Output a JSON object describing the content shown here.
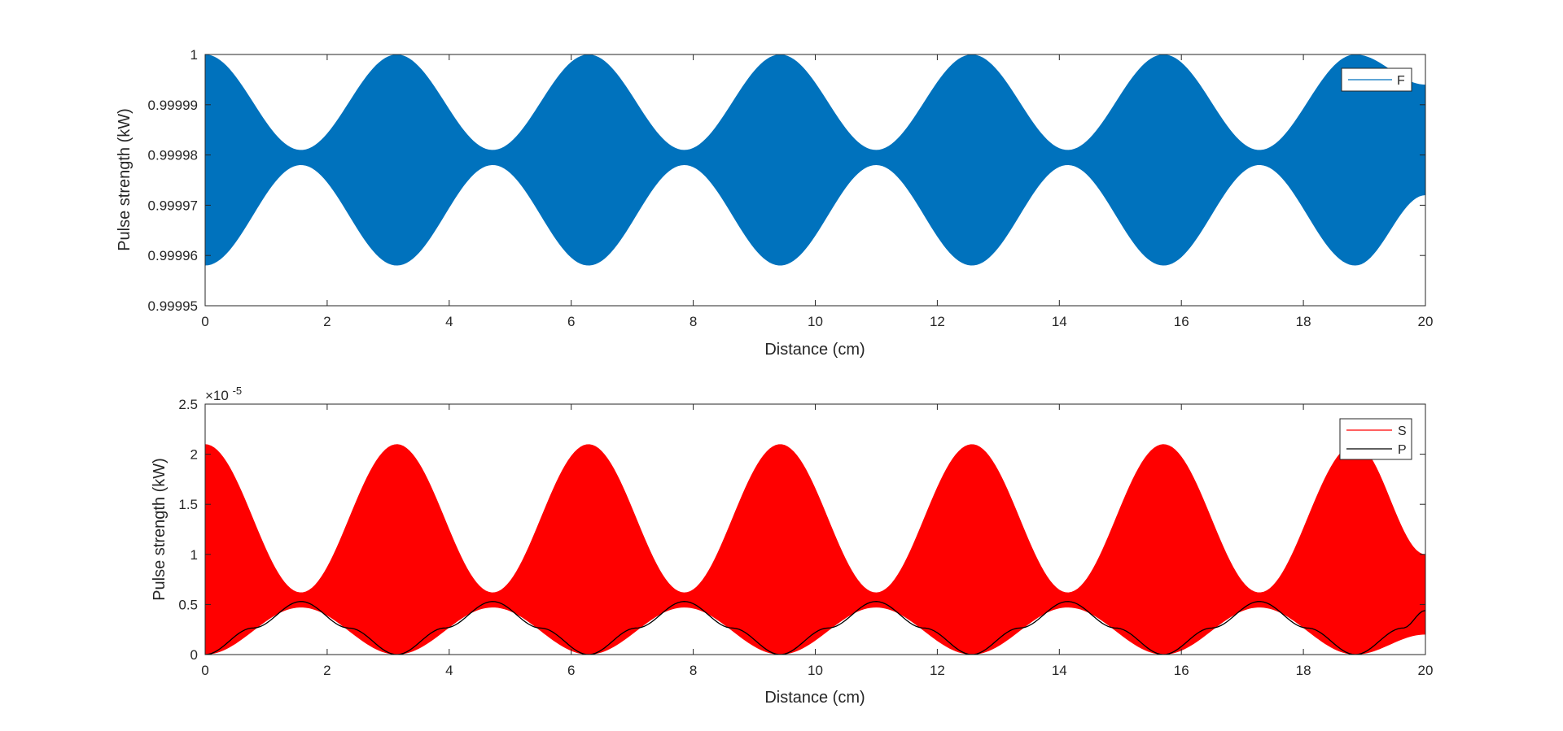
{
  "chart_data": [
    {
      "type": "area",
      "xlabel": "Distance (cm)",
      "ylabel": "Pulse strength (kW)",
      "xlim": [
        0,
        20
      ],
      "ylim": [
        0.99995,
        1.0
      ],
      "xticks": [
        "0",
        "2",
        "4",
        "6",
        "8",
        "10",
        "12",
        "14",
        "16",
        "18",
        "20"
      ],
      "yticks": [
        "0.99995",
        "0.99996",
        "0.99997",
        "0.99998",
        "0.99999",
        "1"
      ],
      "grid": false,
      "legend_position": "top-right",
      "series": [
        {
          "name": "F",
          "color": "#0072BD",
          "style": "filled envelope of rapid oscillation",
          "envelope_period": 3.1416,
          "upper_envelope": {
            "x": [
              0,
              1.5708,
              3.1416,
              4.7124,
              6.2832,
              7.854,
              9.4248,
              10.9956,
              12.5664,
              14.1372,
              15.708,
              17.2788,
              18.8496,
              20
            ],
            "y": [
              1.0,
              0.999981,
              1.0,
              0.999981,
              1.0,
              0.999981,
              1.0,
              0.999981,
              1.0,
              0.999981,
              1.0,
              0.999981,
              1.0,
              0.999994
            ]
          },
          "lower_envelope": {
            "x": [
              0,
              1.5708,
              3.1416,
              4.7124,
              6.2832,
              7.854,
              9.4248,
              10.9956,
              12.5664,
              14.1372,
              15.708,
              17.2788,
              18.8496,
              20
            ],
            "y": [
              0.999958,
              0.999978,
              0.999958,
              0.999978,
              0.999958,
              0.999978,
              0.999958,
              0.999978,
              0.999958,
              0.999978,
              0.999958,
              0.999978,
              0.999958,
              0.999972
            ]
          }
        }
      ]
    },
    {
      "type": "area",
      "xlabel": "Distance (cm)",
      "ylabel": "Pulse strength (kW)",
      "y_exponent_label": "×10",
      "y_exponent_power": "-5",
      "xlim": [
        0,
        20
      ],
      "ylim": [
        0,
        2.5
      ],
      "xticks": [
        "0",
        "2",
        "4",
        "6",
        "8",
        "10",
        "12",
        "14",
        "16",
        "18",
        "20"
      ],
      "yticks": [
        "0",
        "0.5",
        "1",
        "1.5",
        "2",
        "2.5"
      ],
      "grid": false,
      "legend_position": "top-right",
      "series": [
        {
          "name": "S",
          "color": "#FF0000",
          "style": "filled envelope of rapid oscillation",
          "envelope_period": 3.1416,
          "upper_envelope": {
            "x": [
              0,
              1.5708,
              3.1416,
              4.7124,
              6.2832,
              7.854,
              9.4248,
              10.9956,
              12.5664,
              14.1372,
              15.708,
              17.2788,
              18.8496,
              20
            ],
            "y": [
              2.1,
              0.62,
              2.1,
              0.62,
              2.1,
              0.62,
              2.1,
              0.62,
              2.1,
              0.62,
              2.1,
              0.62,
              2.1,
              1.0
            ]
          },
          "lower_envelope": {
            "x": [
              0,
              1.5708,
              3.1416,
              4.7124,
              6.2832,
              7.854,
              9.4248,
              10.9956,
              12.5664,
              14.1372,
              15.708,
              17.2788,
              18.8496,
              20
            ],
            "y": [
              0,
              0.47,
              0,
              0.47,
              0,
              0.47,
              0,
              0.47,
              0,
              0.47,
              0,
              0.47,
              0,
              0.2
            ]
          }
        },
        {
          "name": "P",
          "color": "#000000",
          "style": "line",
          "x": [
            0,
            0.7854,
            1.5708,
            2.3562,
            3.1416,
            3.927,
            4.7124,
            5.4978,
            6.2832,
            7.0686,
            7.854,
            8.6394,
            9.4248,
            10.2102,
            10.9956,
            11.781,
            12.5664,
            13.3518,
            14.1372,
            14.9226,
            15.708,
            16.4934,
            17.2788,
            18.0642,
            18.8496,
            19.635,
            20
          ],
          "y": [
            0,
            0.265,
            0.53,
            0.265,
            0,
            0.265,
            0.53,
            0.265,
            0,
            0.265,
            0.53,
            0.265,
            0,
            0.265,
            0.53,
            0.265,
            0,
            0.265,
            0.53,
            0.265,
            0,
            0.265,
            0.53,
            0.265,
            0,
            0.265,
            0.44
          ]
        }
      ]
    }
  ]
}
